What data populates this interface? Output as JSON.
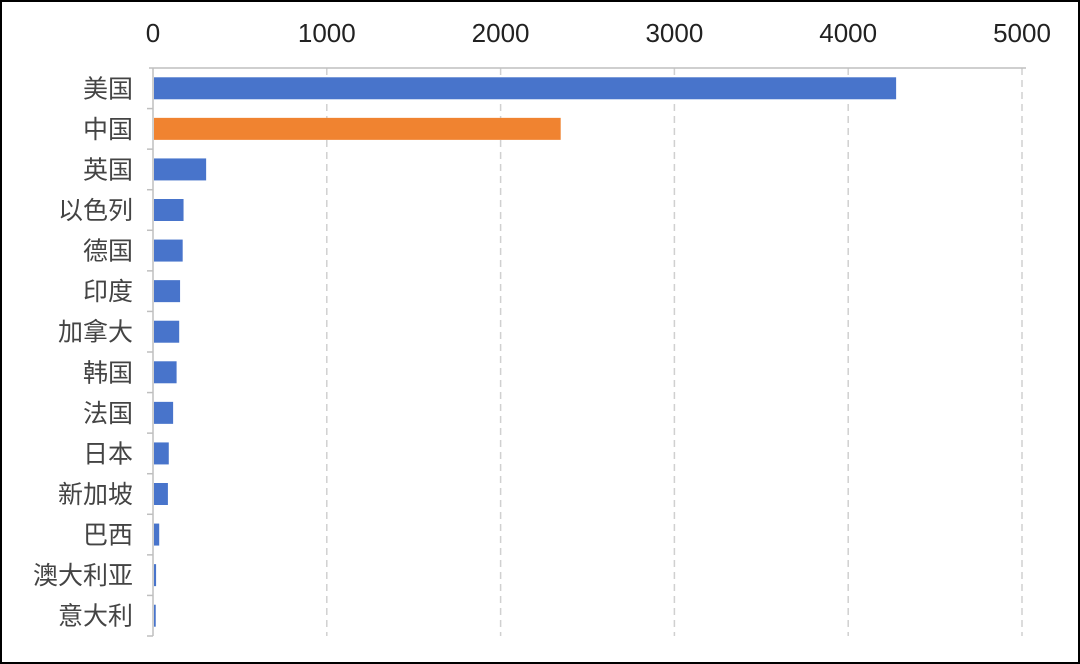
{
  "chart_data": {
    "type": "bar",
    "orientation": "horizontal",
    "categories": [
      "美国",
      "中国",
      "英国",
      "以色列",
      "德国",
      "印度",
      "加拿大",
      "韩国",
      "法国",
      "日本",
      "新加坡",
      "巴西",
      "澳大利亚",
      "意大利"
    ],
    "values": [
      4270,
      2340,
      300,
      170,
      165,
      150,
      145,
      130,
      110,
      85,
      80,
      30,
      12,
      10
    ],
    "xlim": [
      0,
      5000
    ],
    "xticks": [
      0,
      1000,
      2000,
      3000,
      4000,
      5000
    ],
    "x_axis_position": "top",
    "grid": "vertical dashed",
    "legend": "none",
    "colors": {
      "default": "#4874cb",
      "highlight": "#f08330",
      "highlight_category": "中国",
      "grid": "#d0d0d0",
      "axis": "#bfbfbf"
    },
    "title": "",
    "xlabel": "",
    "ylabel": ""
  }
}
